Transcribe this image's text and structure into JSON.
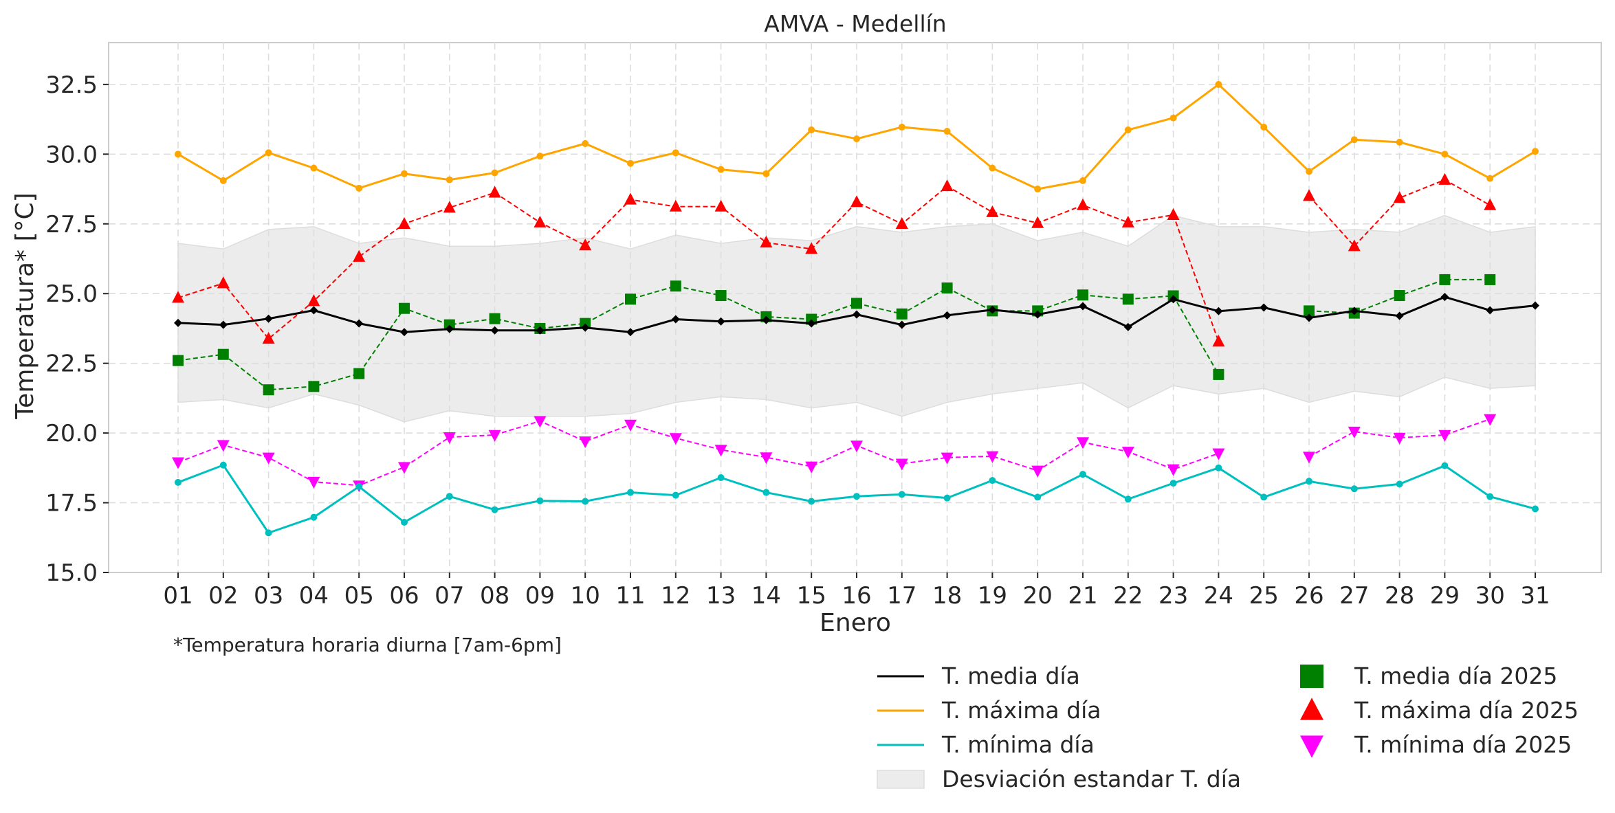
{
  "chart_data": {
    "type": "line",
    "title": "AMVA - Medellín",
    "xlabel": "Enero",
    "ylabel": "Temperatura* [°C]",
    "footnote": "*Temperatura horaria diurna [7am-6pm]",
    "ylim": [
      15.0,
      34.0
    ],
    "yticks": [
      "15.0",
      "17.5",
      "20.0",
      "22.5",
      "25.0",
      "27.5",
      "30.0",
      "32.5"
    ],
    "grid": true,
    "legend_position": "bottom-right, below plot",
    "x": [
      "01",
      "02",
      "03",
      "04",
      "05",
      "06",
      "07",
      "08",
      "09",
      "10",
      "11",
      "12",
      "13",
      "14",
      "15",
      "16",
      "17",
      "18",
      "19",
      "20",
      "21",
      "22",
      "23",
      "24",
      "25",
      "26",
      "27",
      "28",
      "29",
      "30",
      "31"
    ],
    "band": {
      "name": "Desviación estandar T. día",
      "color": "#ececec",
      "upper": [
        26.8,
        26.6,
        27.3,
        27.4,
        26.8,
        27.0,
        26.7,
        26.7,
        26.8,
        27.0,
        26.6,
        27.1,
        26.8,
        27.0,
        26.9,
        27.4,
        27.2,
        27.4,
        27.5,
        26.9,
        27.2,
        26.7,
        27.8,
        27.4,
        27.4,
        27.2,
        27.3,
        27.2,
        27.8,
        27.2,
        27.4
      ],
      "lower": [
        21.1,
        21.2,
        20.9,
        21.4,
        21.0,
        20.4,
        20.8,
        20.6,
        20.6,
        20.6,
        20.7,
        21.1,
        21.3,
        21.2,
        20.9,
        21.1,
        20.6,
        21.1,
        21.4,
        21.6,
        21.8,
        20.9,
        21.7,
        21.4,
        21.6,
        21.1,
        21.5,
        21.3,
        22.0,
        21.6,
        21.7
      ]
    },
    "series": [
      {
        "name": "T. media día",
        "color": "#000000",
        "style": "solid",
        "marker": "diamond",
        "values": [
          23.95,
          23.88,
          24.1,
          24.4,
          23.93,
          23.62,
          23.73,
          23.68,
          23.68,
          23.78,
          23.62,
          24.08,
          24.0,
          24.05,
          23.93,
          24.25,
          23.88,
          24.22,
          24.42,
          24.25,
          24.55,
          23.8,
          24.8,
          24.37,
          24.5,
          24.13,
          24.38,
          24.2,
          24.88,
          24.4,
          24.57
        ]
      },
      {
        "name": "T. máxima día",
        "color": "#ffa500",
        "style": "solid",
        "marker": "circle",
        "values": [
          30.0,
          29.05,
          30.05,
          29.5,
          28.78,
          29.3,
          29.08,
          29.33,
          29.93,
          30.38,
          29.67,
          30.05,
          29.45,
          29.3,
          30.87,
          30.55,
          30.97,
          30.82,
          29.5,
          28.75,
          29.05,
          30.87,
          31.3,
          32.5,
          30.97,
          29.38,
          30.52,
          30.43,
          30.0,
          29.13,
          30.1
        ]
      },
      {
        "name": "T. mínima día",
        "color": "#00bfbf",
        "style": "solid",
        "marker": "circle",
        "values": [
          18.23,
          18.85,
          16.42,
          16.98,
          18.08,
          16.8,
          17.73,
          17.25,
          17.57,
          17.55,
          17.87,
          17.77,
          18.4,
          17.87,
          17.55,
          17.73,
          17.8,
          17.67,
          18.3,
          17.7,
          18.52,
          17.63,
          18.2,
          18.75,
          17.7,
          18.27,
          18.0,
          18.17,
          18.83,
          17.72,
          17.28
        ]
      },
      {
        "name": "T. media día 2025",
        "color": "#008000",
        "style": "dashed",
        "marker": "square",
        "values": [
          22.6,
          22.82,
          21.55,
          21.67,
          22.13,
          24.47,
          23.88,
          24.1,
          23.75,
          23.93,
          24.8,
          25.27,
          24.93,
          24.17,
          24.08,
          24.65,
          24.27,
          25.2,
          24.38,
          24.38,
          24.95,
          24.8,
          24.92,
          22.1,
          null,
          24.38,
          24.3,
          24.93,
          25.5,
          25.5,
          null
        ]
      },
      {
        "name": "T. máxima día 2025",
        "color": "#ff0000",
        "style": "dashed",
        "marker": "triangle-up",
        "values": [
          24.85,
          25.37,
          23.38,
          24.73,
          26.32,
          27.5,
          28.08,
          28.62,
          27.55,
          26.73,
          28.37,
          28.12,
          28.12,
          26.83,
          26.6,
          28.28,
          27.5,
          28.85,
          27.92,
          27.53,
          28.17,
          27.55,
          27.82,
          23.28,
          null,
          28.5,
          26.7,
          28.43,
          29.08,
          28.17,
          null
        ]
      },
      {
        "name": "T. mínima día 2025",
        "color": "#ff00ff",
        "style": "dashed",
        "marker": "triangle-down",
        "values": [
          18.95,
          19.57,
          19.12,
          18.25,
          18.12,
          18.78,
          19.85,
          19.93,
          20.43,
          19.7,
          20.3,
          19.82,
          19.4,
          19.13,
          18.8,
          19.55,
          18.9,
          19.12,
          19.17,
          18.65,
          19.67,
          19.33,
          18.7,
          19.27,
          null,
          19.15,
          20.05,
          19.83,
          19.93,
          20.5,
          null
        ]
      }
    ]
  }
}
